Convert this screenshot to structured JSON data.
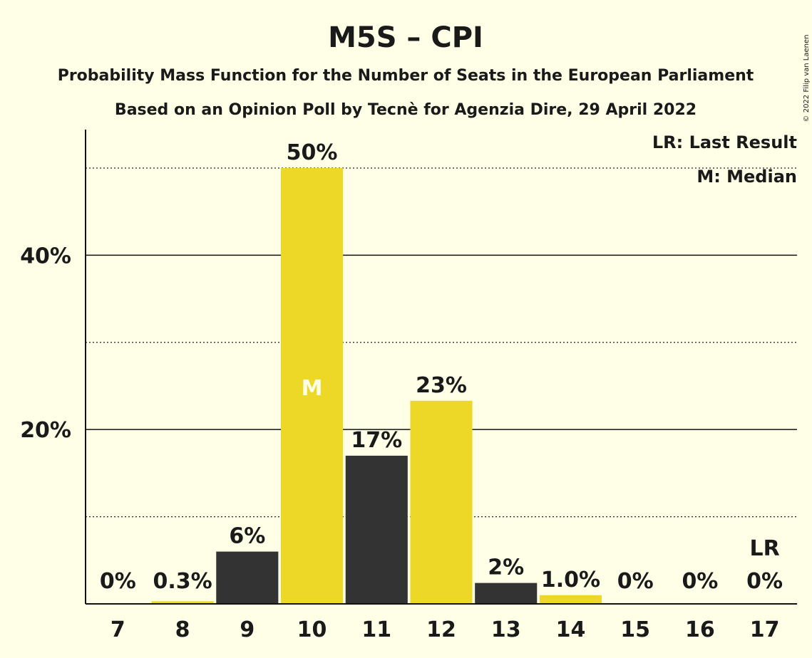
{
  "copyright": "© 2022 Filip van Laenen",
  "colors": {
    "background": "#FFFEE6",
    "yellow": "#EDD827",
    "dark": "#333333",
    "text": "#1a1a1a",
    "median_text": "#FFFEE6"
  },
  "chart_data": {
    "type": "bar",
    "title": "M5S – CPI",
    "subtitle": "Probability Mass Function for the Number of Seats in the European Parliament",
    "subtitle2": "Based on an Opinion Poll by Tecnè for Agenzia Dire, 29 April 2022",
    "xlabel": "",
    "ylabel": "",
    "categories": [
      "7",
      "8",
      "9",
      "10",
      "11",
      "12",
      "13",
      "14",
      "15",
      "16",
      "17"
    ],
    "values": [
      0,
      0.3,
      6,
      50,
      17,
      23.3,
      2.4,
      1.0,
      0,
      0,
      0
    ],
    "value_labels": [
      "0%",
      "0.3%",
      "6%",
      "50%",
      "17%",
      "23%",
      "2%",
      "1.0%",
      "0%",
      "0%",
      "0%"
    ],
    "bar_colors": [
      "yellow",
      "yellow",
      "dark",
      "yellow",
      "dark",
      "yellow",
      "dark",
      "yellow",
      "dark",
      "yellow",
      "dark"
    ],
    "ylim": [
      0,
      54
    ],
    "yticks": [
      20,
      40
    ],
    "ytick_labels": [
      "20%",
      "40%"
    ],
    "major_grid": [
      20,
      40
    ],
    "minor_grid": [
      10,
      30,
      50
    ],
    "median_category": "10",
    "median_marker": "M",
    "last_result_category": "17",
    "last_result_marker": "LR",
    "legend": {
      "placement": "top-right",
      "last_result": "LR: Last Result",
      "median": "M: Median"
    }
  }
}
